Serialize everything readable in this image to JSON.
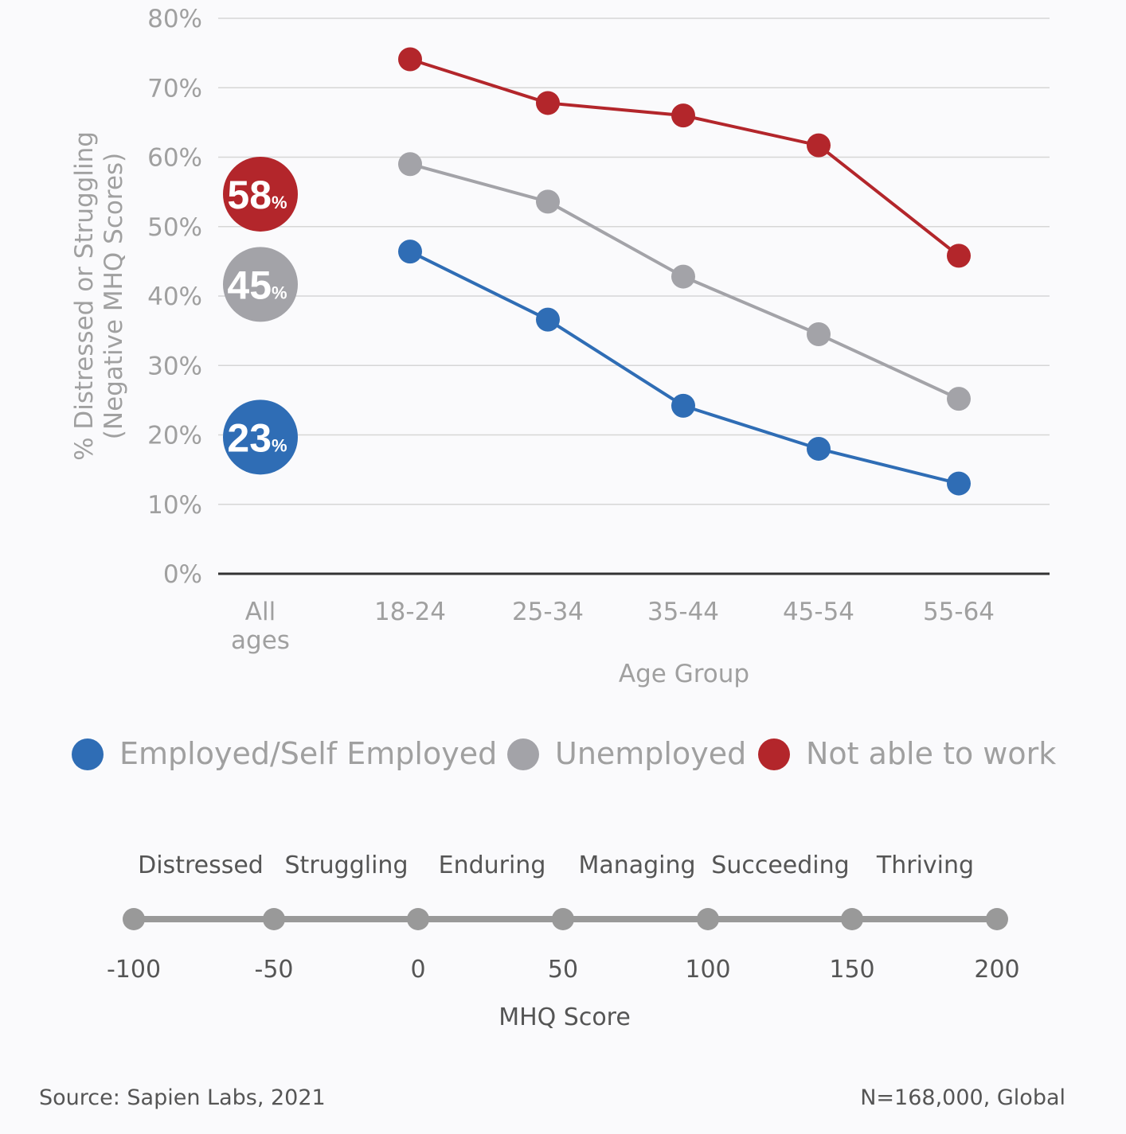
{
  "colors": {
    "employed": "#2f6db5",
    "unemployed": "#a3a3a8",
    "not_able": "#b3262b",
    "grid": "#d6d6d6",
    "baseline": "#333333",
    "scale_line": "#999999"
  },
  "chart_data": {
    "type": "line",
    "ylabel_line1": "% Distressed or Struggling",
    "ylabel_line2": "(Negative MHQ Scores)",
    "xlabel": "Age Group",
    "ylim": [
      0,
      80
    ],
    "y_ticks": [
      "0%",
      "10%",
      "20%",
      "30%",
      "40%",
      "50%",
      "60%",
      "70%",
      "80%"
    ],
    "y_tick_values": [
      0,
      10,
      20,
      30,
      40,
      50,
      60,
      70,
      80
    ],
    "all_ages_label_line1": "All",
    "all_ages_label_line2": "ages",
    "categories": [
      "18-24",
      "25-34",
      "35-44",
      "45-54",
      "55-64"
    ],
    "grid": true,
    "legend_position": "bottom",
    "series": [
      {
        "name": "Employed/Self Employed",
        "color": "#2f6db5",
        "values": [
          46.4,
          36.6,
          24.2,
          18.0,
          13.0
        ],
        "all_ages": 23,
        "all_ages_big": "23",
        "all_ages_small": "%"
      },
      {
        "name": "Unemployed",
        "color": "#a3a3a8",
        "values": [
          59.0,
          53.6,
          42.8,
          34.5,
          25.2
        ],
        "all_ages": 45,
        "all_ages_big": "45",
        "all_ages_small": "%"
      },
      {
        "name": "Not able to work",
        "color": "#b3262b",
        "values": [
          74.1,
          67.8,
          66.0,
          61.7,
          45.8
        ],
        "all_ages": 58,
        "all_ages_big": "58",
        "all_ages_small": "%"
      }
    ]
  },
  "mhq_scale": {
    "categories": [
      "Distressed",
      "Struggling",
      "Enduring",
      "Managing",
      "Succeeding",
      "Thriving"
    ],
    "ticks": [
      "-100",
      "-50",
      "0",
      "50",
      "100",
      "150",
      "200"
    ],
    "tick_values": [
      -100,
      -50,
      0,
      50,
      100,
      150,
      200
    ],
    "title": "MHQ Score"
  },
  "footer": {
    "source": "Source: Sapien Labs, 2021",
    "note": "N=168,000, Global"
  }
}
